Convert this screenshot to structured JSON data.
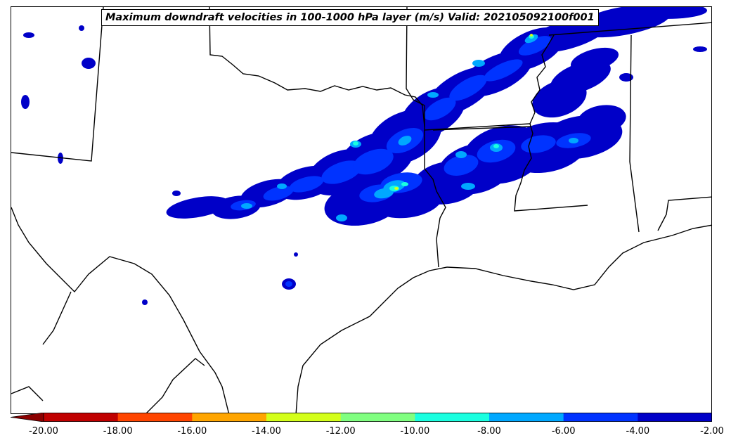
{
  "title": "Maximum downdraft velocities in 100-1000 hPa layer (m/s) Valid: 202105092100f001",
  "colorbar": {
    "ticks": [
      "-20.00",
      "-18.00",
      "-16.00",
      "-14.00",
      "-12.00",
      "-10.00",
      "-8.00",
      "-6.00",
      "-4.00",
      "-2.00"
    ],
    "levels": [
      -20,
      -18,
      -16,
      -14,
      -12,
      -10,
      -8,
      -6,
      -4,
      -2
    ],
    "colors": [
      "#c00000",
      "#ff4500",
      "#ffa500",
      "#d4ff1a",
      "#80ff80",
      "#1affe0",
      "#00a8ff",
      "#0033ff",
      "#0000c8"
    ],
    "extend_color": "#8b0000",
    "extend": "min"
  },
  "map": {
    "background": "#ffffff",
    "boundary_color": "#000000",
    "field_colors": {
      "weak": "#0000c8",
      "moderate": "#0033ff",
      "strong": "#00a8ff",
      "very_strong": "#1affe0",
      "intense": "#80ff80",
      "extreme": "#d4ff1a"
    }
  }
}
